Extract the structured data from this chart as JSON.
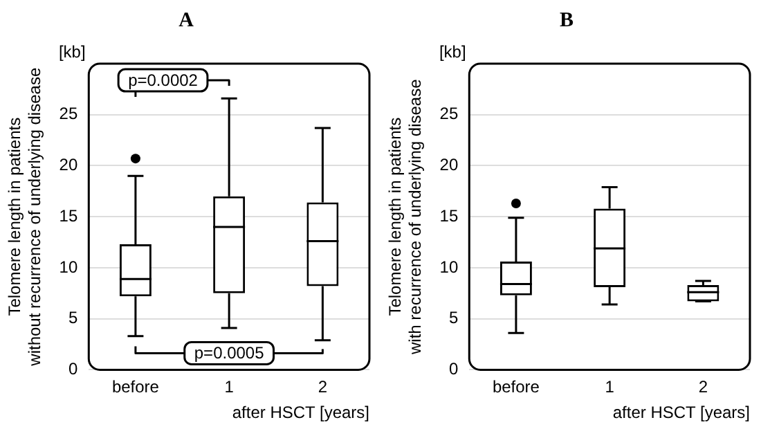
{
  "chart_data": [
    {
      "type": "box",
      "title": "A",
      "ylabel": "Telomere length in patients\nwithout recurrence of underlying disease",
      "xlabel": "after HSCT [years]",
      "categories": [
        "before",
        "1",
        "2"
      ],
      "ylim": [
        0,
        30
      ],
      "yticks": [
        0,
        5,
        10,
        15,
        20,
        25
      ],
      "grid": "y",
      "annotations": [
        "[kb]",
        "p=0.0002",
        "p=0.0005"
      ],
      "boxes": [
        {
          "low": 3.3,
          "q1": 7.2,
          "median": 8.9,
          "q3": 12.3,
          "high": 19,
          "outliers": [
            20.7
          ]
        },
        {
          "low": 4.1,
          "q1": 7.5,
          "median": 14,
          "q3": 17,
          "high": 26.6
        },
        {
          "low": 2.9,
          "q1": 8.2,
          "median": 12.6,
          "q3": 16.4,
          "high": 23.7
        }
      ]
    },
    {
      "type": "box",
      "title": "B",
      "ylabel": "Telomere length in patients\nwith recurrence of underlying disease",
      "xlabel": "after HSCT [years]",
      "categories": [
        "before",
        "1",
        "2"
      ],
      "ylim": [
        0,
        30
      ],
      "yticks": [
        0,
        5,
        10,
        15,
        20,
        25
      ],
      "grid": "y",
      "annotations": [
        "[kb]"
      ],
      "boxes": [
        {
          "low": 3.6,
          "q1": 7.3,
          "median": 8.4,
          "q3": 10.6,
          "high": 14.9,
          "outliers": [
            16.3
          ]
        },
        {
          "low": 6.4,
          "q1": 8.1,
          "median": 11.9,
          "q3": 15.8,
          "high": 17.9
        },
        {
          "low": 6.7,
          "q1": 6.7,
          "median": 7.6,
          "q3": 8.3,
          "high": 8.7
        }
      ]
    }
  ]
}
